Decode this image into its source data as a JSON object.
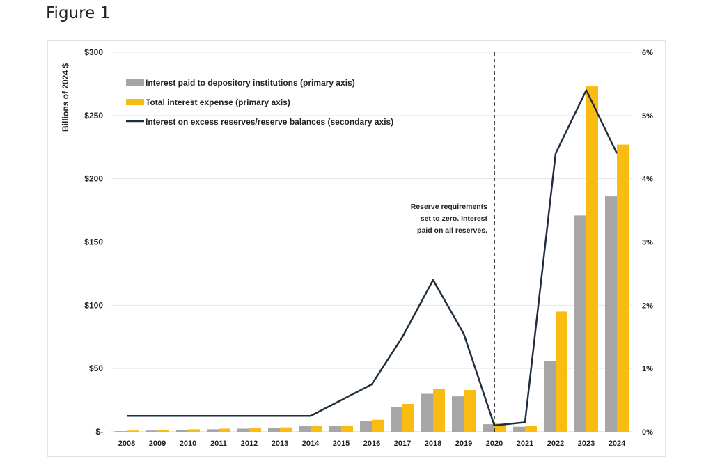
{
  "figure_label": "Figure 1",
  "colors": {
    "gray": "#a6a6a6",
    "gold": "#fbbc12",
    "line": "#1f2d3d",
    "grid": "#e6e6e6"
  },
  "chart_data": {
    "type": "bar",
    "categories": [
      "2008",
      "2009",
      "2010",
      "2011",
      "2012",
      "2013",
      "2014",
      "2015",
      "2016",
      "2017",
      "2018",
      "2019",
      "2020",
      "2021",
      "2022",
      "2023",
      "2024"
    ],
    "ylabel": "Billions of 2024 $",
    "ylim": [
      0,
      300
    ],
    "y_ticks": [
      {
        "value": 0,
        "label": "$-"
      },
      {
        "value": 50,
        "label": "$50"
      },
      {
        "value": 100,
        "label": "$100"
      },
      {
        "value": 150,
        "label": "$150"
      },
      {
        "value": 200,
        "label": "$200"
      },
      {
        "value": 250,
        "label": "$250"
      },
      {
        "value": 300,
        "label": "$300"
      }
    ],
    "y2lim": [
      0,
      6
    ],
    "y2_ticks": [
      {
        "value": 0,
        "label": "0%"
      },
      {
        "value": 1,
        "label": "1%"
      },
      {
        "value": 2,
        "label": "2%"
      },
      {
        "value": 3,
        "label": "3%"
      },
      {
        "value": 4,
        "label": "4%"
      },
      {
        "value": 5,
        "label": "5%"
      },
      {
        "value": 6,
        "label": "6%"
      }
    ],
    "series": [
      {
        "name": "Interest paid to depository institutions (primary axis)",
        "kind": "bar",
        "axis": "primary",
        "values": [
          0.5,
          1,
          1.5,
          2,
          2.5,
          3,
          4.5,
          4.5,
          8.5,
          19.5,
          30,
          28,
          6,
          4,
          56,
          171,
          186
        ]
      },
      {
        "name": "Total interest expense (primary axis)",
        "kind": "bar",
        "axis": "primary",
        "values": [
          1,
          1.5,
          2,
          2.5,
          3,
          3.5,
          5,
          5,
          9.5,
          22,
          34,
          33,
          6.5,
          4.5,
          95,
          273,
          227
        ]
      },
      {
        "name": "Interest on excess reserves/reserve balances (secondary axis)",
        "kind": "line",
        "axis": "secondary",
        "values": [
          0.25,
          0.25,
          0.25,
          0.25,
          0.25,
          0.25,
          0.25,
          0.5,
          0.75,
          1.5,
          2.4,
          1.55,
          0.1,
          0.15,
          4.4,
          5.4,
          4.4
        ]
      }
    ],
    "annotation": {
      "text_lines": [
        "Reserve requirements",
        "set to zero. Interest",
        "paid on all reserves."
      ],
      "at_category": "2020"
    }
  }
}
